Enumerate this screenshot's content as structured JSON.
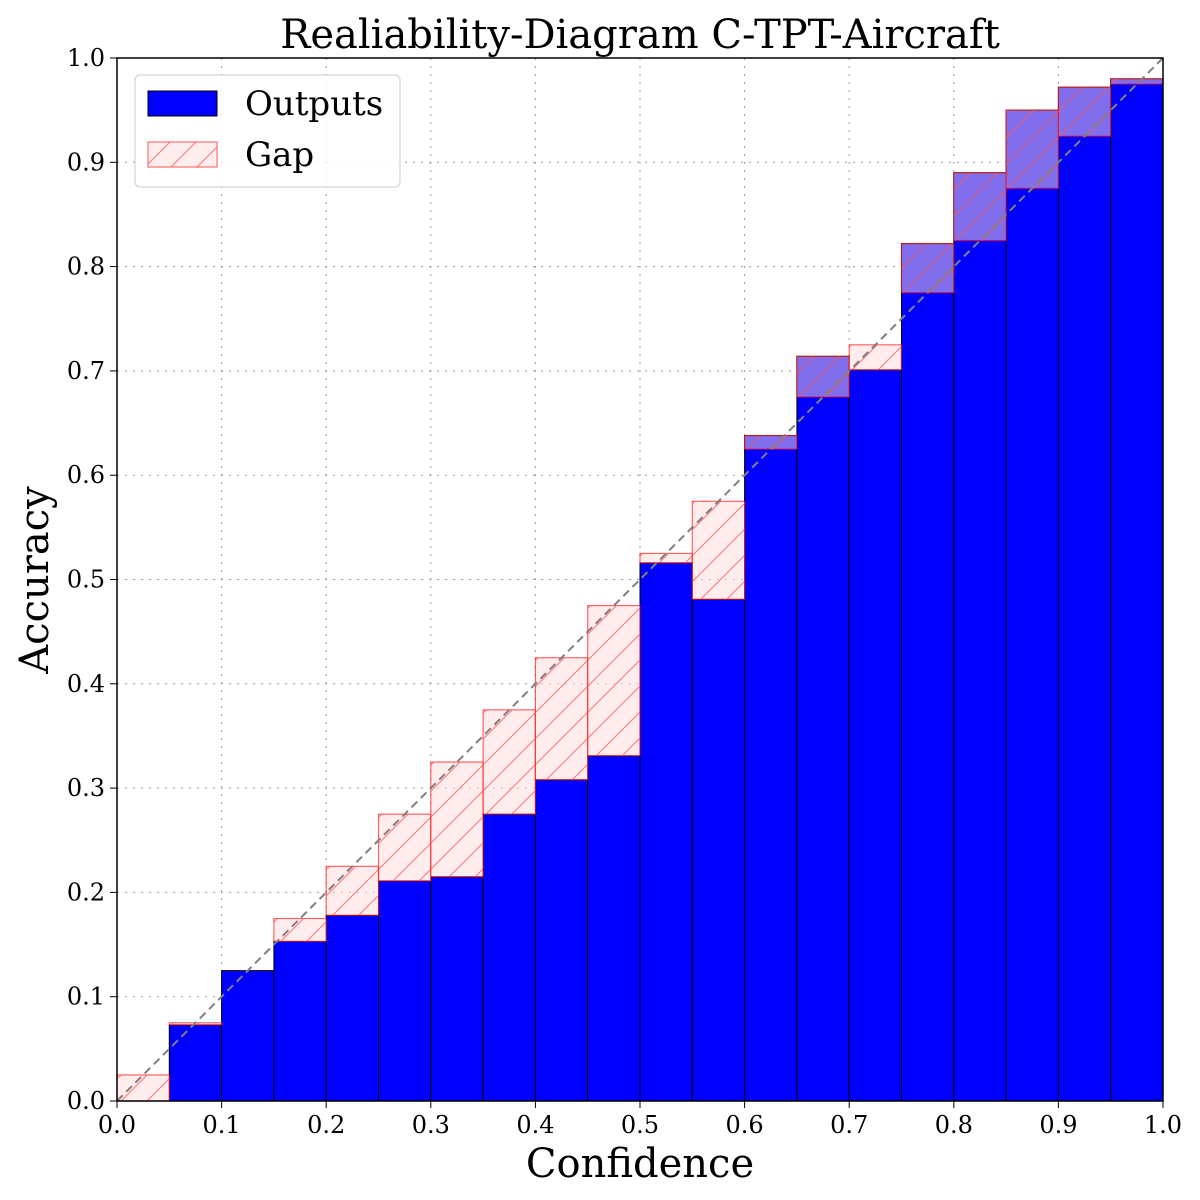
{
  "chart_data": {
    "type": "bar",
    "title": "Realiability-Diagram C-TPT-Aircraft",
    "xlabel": "Confidence",
    "ylabel": "Accuracy",
    "xlim": [
      0,
      1
    ],
    "ylim": [
      0,
      1
    ],
    "grid": true,
    "legend_placement": "top-left",
    "bin_edges": [
      0.0,
      0.05,
      0.1,
      0.15,
      0.2,
      0.25,
      0.3,
      0.35,
      0.4,
      0.45,
      0.5,
      0.55,
      0.6,
      0.65,
      0.7,
      0.75,
      0.8,
      0.85,
      0.9,
      0.95,
      1.0
    ],
    "x_ticks": [
      "0.0",
      "0.1",
      "0.2",
      "0.3",
      "0.4",
      "0.5",
      "0.6",
      "0.7",
      "0.8",
      "0.9",
      "1.0"
    ],
    "y_ticks": [
      "0.0",
      "0.1",
      "0.2",
      "0.3",
      "0.4",
      "0.5",
      "0.6",
      "0.7",
      "0.8",
      "0.9",
      "1.0"
    ],
    "series": [
      {
        "name": "Outputs",
        "color": "#0000ff",
        "values": [
          0.0,
          0.073,
          0.125,
          0.153,
          0.178,
          0.211,
          0.215,
          0.275,
          0.308,
          0.331,
          0.516,
          0.481,
          0.638,
          0.714,
          0.701,
          0.822,
          0.89,
          0.95,
          0.972,
          0.98
        ]
      },
      {
        "name": "Gap",
        "color": "#ff0000",
        "bin_centers": [
          0.025,
          0.075,
          0.125,
          0.175,
          0.225,
          0.275,
          0.325,
          0.375,
          0.425,
          0.475,
          0.525,
          0.575,
          0.625,
          0.675,
          0.725,
          0.775,
          0.825,
          0.875,
          0.925,
          0.975
        ]
      }
    ],
    "reference_line": "y = x (dashed gray)"
  }
}
